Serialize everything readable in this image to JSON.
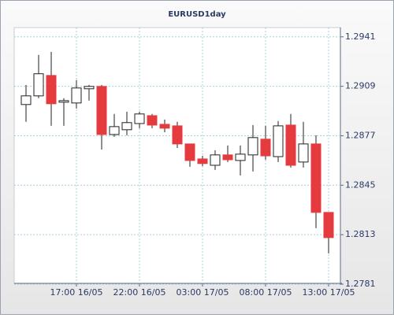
{
  "chart_data": {
    "type": "candlestick",
    "title": "EURUSD1day",
    "categories": [
      null,
      null,
      null,
      null,
      "17:00 16/05",
      null,
      null,
      null,
      null,
      "22:00 16/05",
      null,
      null,
      null,
      null,
      "03:00 17/05",
      null,
      null,
      null,
      null,
      "08:00 17/05",
      null,
      null,
      null,
      null,
      "13:00 17/05"
    ],
    "open": [
      1.28972,
      1.29028,
      1.2916,
      1.28987,
      1.28982,
      1.29074,
      1.29089,
      1.28778,
      1.28809,
      1.28849,
      1.289,
      1.28844,
      1.28834,
      1.28717,
      1.2862,
      1.28579,
      1.28646,
      1.2861,
      1.28646,
      1.28748,
      1.28635,
      1.28839,
      1.286,
      1.28717,
      1.28274
    ],
    "high": [
      1.29099,
      1.29293,
      1.29313,
      1.29013,
      1.2913,
      1.29099,
      1.29099,
      1.28911,
      1.28926,
      1.28926,
      1.28911,
      1.28875,
      1.2886,
      1.28717,
      1.2864,
      1.28676,
      1.28707,
      1.28707,
      1.28839,
      1.28834,
      1.28865,
      1.28911,
      1.2886,
      1.28773,
      1.28274
    ],
    "low": [
      1.2886,
      1.29013,
      1.28834,
      1.28834,
      1.28946,
      1.28997,
      1.28681,
      1.28763,
      1.28773,
      1.28819,
      1.28819,
      1.28793,
      1.28691,
      1.28569,
      1.28574,
      1.28549,
      1.286,
      1.28513,
      1.28539,
      1.28615,
      1.286,
      1.28564,
      1.28564,
      1.28172,
      1.28009
    ],
    "close": [
      1.29028,
      1.29171,
      1.28977,
      1.28997,
      1.29079,
      1.29089,
      1.28778,
      1.28829,
      1.28855,
      1.28911,
      1.28839,
      1.28819,
      1.28717,
      1.2861,
      1.2859,
      1.28646,
      1.28615,
      1.28651,
      1.28758,
      1.2864,
      1.28834,
      1.28579,
      1.28717,
      1.28274,
      1.28111
    ],
    "up_color": "#ffffff",
    "down_color": "#e53b3e",
    "ylim": [
      1.27815,
      1.2947
    ],
    "yticks": [
      1.2781,
      1.2813,
      1.2845,
      1.2877,
      1.2909,
      1.2941
    ],
    "grid": true
  }
}
